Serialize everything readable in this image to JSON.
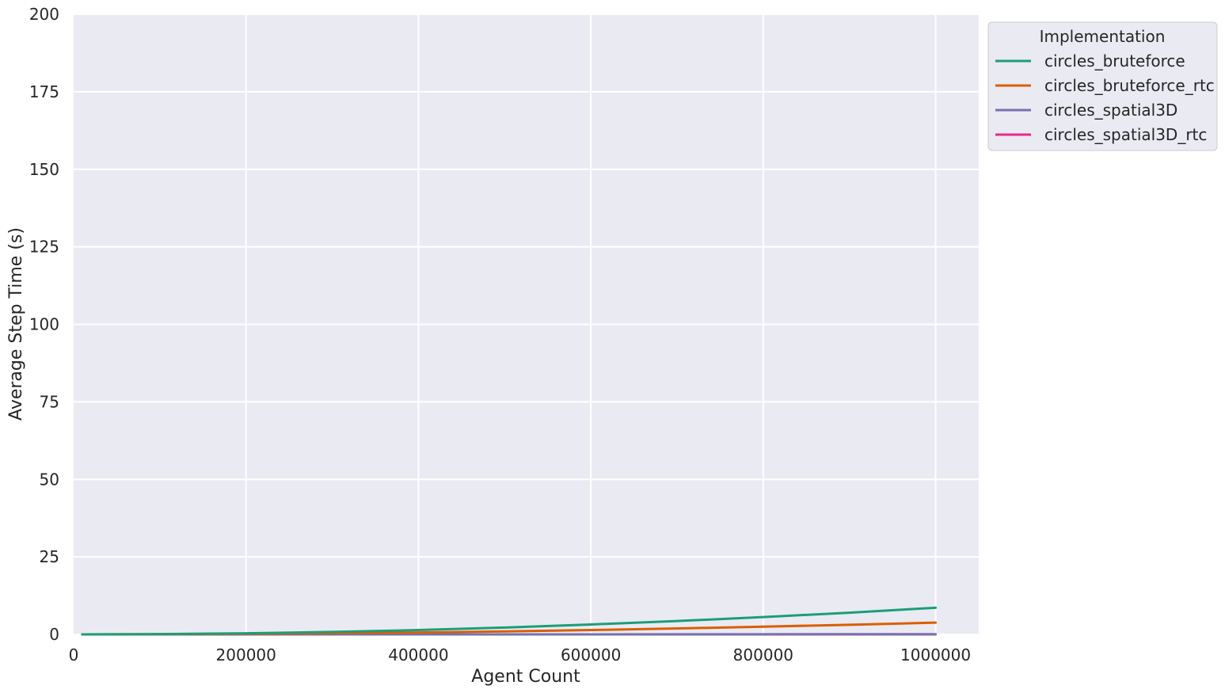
{
  "chart_data": {
    "type": "line",
    "title": "",
    "xlabel": "Agent Count",
    "ylabel": "Average Step Time (s)",
    "xlim": [
      0,
      1050000
    ],
    "ylim": [
      0,
      200
    ],
    "x_ticks": [
      0,
      200000,
      400000,
      600000,
      800000,
      1000000
    ],
    "y_ticks": [
      0,
      25,
      50,
      75,
      100,
      125,
      150,
      175,
      200
    ],
    "grid": true,
    "background": "#eaeaf2",
    "legend": {
      "title": "Implementation",
      "placement": "outside-upper-right"
    },
    "x": [
      10000,
      100000,
      200000,
      300000,
      400000,
      500000,
      600000,
      700000,
      800000,
      900000,
      1000000
    ],
    "series": [
      {
        "name": "circles_bruteforce",
        "color": "#1b9e77",
        "values": [
          0.0,
          0.09,
          0.35,
          0.8,
          1.4,
          2.2,
          3.2,
          4.3,
          5.6,
          7.0,
          8.6
        ]
      },
      {
        "name": "circles_bruteforce_rtc",
        "color": "#d95f02",
        "values": [
          0.0,
          0.04,
          0.15,
          0.35,
          0.62,
          0.97,
          1.4,
          1.9,
          2.5,
          3.1,
          3.8
        ]
      },
      {
        "name": "circles_spatial3D",
        "color": "#7570b3",
        "values": [
          0.0,
          0.002,
          0.004,
          0.006,
          0.008,
          0.01,
          0.012,
          0.014,
          0.016,
          0.018,
          0.02
        ]
      },
      {
        "name": "circles_spatial3D_rtc",
        "color": "#e7298a",
        "values": [
          0.0,
          0.002,
          0.005,
          0.007,
          0.01,
          0.012,
          0.015,
          0.017,
          0.02,
          0.022,
          0.025
        ]
      }
    ]
  }
}
